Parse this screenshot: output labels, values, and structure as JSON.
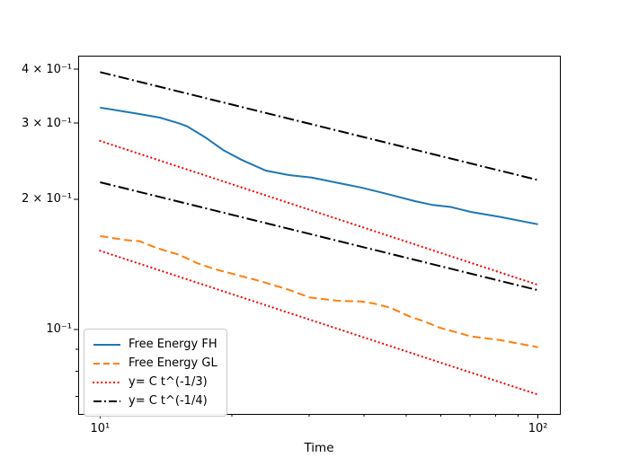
{
  "chart_data": {
    "type": "line",
    "title": "",
    "xlabel": "Time",
    "ylabel": "",
    "xscale": "log",
    "yscale": "log",
    "xlim": [
      8.91,
      112.2
    ],
    "ylim": [
      0.0637,
      0.43
    ],
    "grid": false,
    "x_ticks": {
      "major": [
        {
          "value": 10,
          "label": "10¹"
        },
        {
          "value": 100,
          "label": "10²"
        }
      ],
      "minor_values": [
        20,
        30,
        40,
        50,
        60,
        70,
        80,
        90
      ]
    },
    "y_ticks": {
      "labeled": [
        {
          "value": 0.4,
          "label": "4 × 10⁻¹"
        },
        {
          "value": 0.3,
          "label": "3 × 10⁻¹"
        },
        {
          "value": 0.2,
          "label": "2 × 10⁻¹"
        },
        {
          "value": 0.1,
          "label": "10⁻¹"
        }
      ],
      "minor_values": [
        0.07,
        0.08,
        0.09
      ]
    },
    "series": [
      {
        "name": "Free Energy FH",
        "color": "#1f77b4",
        "style": "solid",
        "in_legend": true,
        "x": [
          10,
          11,
          12.3,
          13.7,
          15.1,
          15.8,
          17.4,
          19.1,
          21,
          23.9,
          27,
          30.4,
          32.9,
          35.9,
          39.4,
          43.3,
          47.6,
          52.3,
          57.5,
          63.2,
          70.2,
          82,
          100
        ],
        "y": [
          0.326,
          0.321,
          0.315,
          0.309,
          0.3,
          0.295,
          0.278,
          0.26,
          0.247,
          0.233,
          0.2275,
          0.2245,
          0.221,
          0.217,
          0.213,
          0.208,
          0.203,
          0.198,
          0.194,
          0.192,
          0.187,
          0.182,
          0.175
        ]
      },
      {
        "name": "Free Energy GL",
        "color": "#ff7f0e",
        "style": "dashed",
        "in_legend": true,
        "x": [
          10,
          11.4,
          12.3,
          13.3,
          14.4,
          15.1,
          16.6,
          18.2,
          20.3,
          23.1,
          27,
          30.1,
          34.7,
          39.4,
          41.9,
          46,
          50.6,
          54.8,
          59.4,
          70.2,
          82,
          100
        ],
        "y": [
          0.1645,
          0.161,
          0.16,
          0.155,
          0.151,
          0.149,
          0.1425,
          0.138,
          0.134,
          0.1295,
          0.1234,
          0.1185,
          0.1165,
          0.116,
          0.1149,
          0.1122,
          0.1074,
          0.1044,
          0.101,
          0.0963,
          0.0944,
          0.0909
        ]
      },
      {
        "name": "y= C t^(-1/3)",
        "color": "#ff0000",
        "style": "dotted",
        "in_legend": true,
        "x": [
          10,
          100
        ],
        "y": [
          0.273,
          0.1267
        ]
      },
      {
        "name": "y= C t^(-1/3)",
        "color": "#ff0000",
        "style": "dotted",
        "in_legend": false,
        "x": [
          10,
          100
        ],
        "y": [
          0.152,
          0.0706
        ]
      },
      {
        "name": "y= C t^(-1/4)",
        "color": "#000000",
        "style": "dashdot",
        "in_legend": true,
        "x": [
          10,
          100
        ],
        "y": [
          0.394,
          0.2216
        ]
      },
      {
        "name": "y= C t^(-1/4)",
        "color": "#000000",
        "style": "dashdot",
        "in_legend": false,
        "x": [
          10,
          100
        ],
        "y": [
          0.219,
          0.1232
        ]
      }
    ],
    "legend": {
      "position": "lower left",
      "entries": [
        {
          "label": "Free Energy FH",
          "color": "#1f77b4",
          "style": "solid"
        },
        {
          "label": "Free Energy GL",
          "color": "#ff7f0e",
          "style": "dashed"
        },
        {
          "label": "y= C t^(-1/3)",
          "color": "#ff0000",
          "style": "dotted"
        },
        {
          "label": "y= C t^(-1/4)",
          "color": "#000000",
          "style": "dashdot"
        }
      ]
    }
  }
}
